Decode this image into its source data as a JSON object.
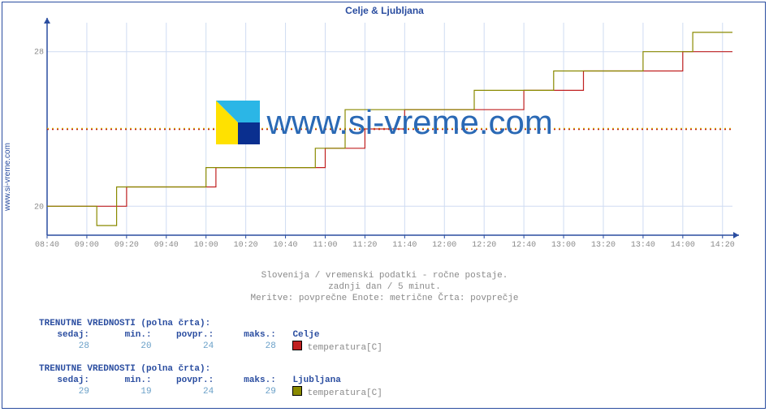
{
  "title": "Celje & Ljubljana",
  "side_url": "www.si-vreme.com",
  "watermark_text": "www.si-vreme.com",
  "chart": {
    "type": "step-line",
    "background_color": "#ffffff",
    "border_color": "#2a4da0",
    "grid_major_color": "#cfdcf2",
    "tick_font_size": 10,
    "tick_color": "#8a8a8a",
    "title_color": "#2a4da0",
    "x": {
      "ticks": [
        "08:40",
        "09:00",
        "09:20",
        "09:40",
        "10:00",
        "10:20",
        "10:40",
        "11:00",
        "11:20",
        "11:40",
        "12:00",
        "12:20",
        "12:40",
        "13:00",
        "13:20",
        "13:40",
        "14:00",
        "14:20"
      ],
      "range_minutes": [
        520,
        865
      ]
    },
    "y": {
      "lim": [
        18.5,
        29.5
      ],
      "ticks": [
        20,
        28
      ]
    },
    "avg_lines": {
      "colors": [
        "#d9b100",
        "#c02020"
      ],
      "dash": [
        2,
        4
      ],
      "stroke_width": 1.4
    },
    "avg_value": 24,
    "series": [
      {
        "name": "Celje",
        "label": "temperatura[C]",
        "color": "#c02020",
        "stroke_width": 1.2,
        "swatch_fill": "#c02020",
        "points_minutes_value": [
          [
            520,
            20
          ],
          [
            550,
            20
          ],
          [
            550,
            20
          ],
          [
            560,
            20
          ],
          [
            560,
            21
          ],
          [
            605,
            21
          ],
          [
            605,
            22
          ],
          [
            660,
            22
          ],
          [
            660,
            23
          ],
          [
            680,
            23
          ],
          [
            680,
            24
          ],
          [
            700,
            24
          ],
          [
            700,
            25
          ],
          [
            760,
            25
          ],
          [
            760,
            26
          ],
          [
            790,
            26
          ],
          [
            790,
            27
          ],
          [
            840,
            27
          ],
          [
            840,
            28
          ],
          [
            865,
            28
          ]
        ]
      },
      {
        "name": "Ljubljana",
        "label": "temperatura[C]",
        "color": "#8a8a00",
        "stroke_width": 1.2,
        "swatch_fill": "#8a8a00",
        "points_minutes_value": [
          [
            520,
            20
          ],
          [
            545,
            20
          ],
          [
            545,
            19
          ],
          [
            555,
            19
          ],
          [
            555,
            21
          ],
          [
            600,
            21
          ],
          [
            600,
            22
          ],
          [
            655,
            22
          ],
          [
            655,
            23
          ],
          [
            670,
            23
          ],
          [
            670,
            25
          ],
          [
            735,
            25
          ],
          [
            735,
            26
          ],
          [
            775,
            26
          ],
          [
            775,
            27
          ],
          [
            820,
            27
          ],
          [
            820,
            28
          ],
          [
            845,
            28
          ],
          [
            845,
            29
          ],
          [
            865,
            29
          ]
        ]
      }
    ]
  },
  "captions": {
    "line1": "Slovenija / vremenski podatki - ročne postaje.",
    "line2": "zadnji dan / 5 minut.",
    "line3": "Meritve: povprečne  Enote: metrične  Črta: povprečje"
  },
  "info_header": "TRENUTNE VREDNOSTI (polna črta):",
  "info_labels": {
    "now": "sedaj:",
    "min": "min.:",
    "avg": "povpr.:",
    "max": "maks.:"
  },
  "blocks": [
    {
      "series_name": "Celje",
      "series_label": "temperatura[C]",
      "swatch": "#c02020",
      "now": 28,
      "min": 20,
      "avg": 24,
      "max": 28
    },
    {
      "series_name": "Ljubljana",
      "series_label": "temperatura[C]",
      "swatch": "#8a8a00",
      "now": 29,
      "min": 19,
      "avg": 24,
      "max": 29
    }
  ]
}
